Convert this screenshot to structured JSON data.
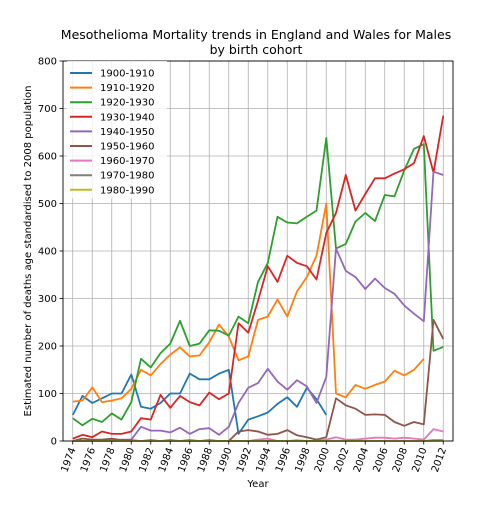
{
  "chart_data": {
    "type": "line",
    "title": "Mesothelioma Mortality trends in England and Wales for Males",
    "subtitle": "by birth cohort",
    "xlabel": "Year",
    "ylabel": "Estimated number of deaths age standardised to 2008 population",
    "xlim": [
      1973,
      2013
    ],
    "ylim": [
      0,
      800
    ],
    "xticks": [
      "1974",
      "1976",
      "1978",
      "1980",
      "1982",
      "1984",
      "1986",
      "1988",
      "1990",
      "1992",
      "1994",
      "1996",
      "1998",
      "2000",
      "2002",
      "2004",
      "2006",
      "2008",
      "2010",
      "2012"
    ],
    "yticks": [
      "0",
      "100",
      "200",
      "300",
      "400",
      "500",
      "600",
      "700",
      "800"
    ],
    "grid": true,
    "legend_position": "top-left",
    "series": [
      {
        "name": "1900-1910",
        "color": "#1f77b4",
        "x": [
          1974,
          1975,
          1976,
          1977,
          1978,
          1979,
          1980,
          1981,
          1982,
          1983,
          1984,
          1985,
          1986,
          1987,
          1988,
          1989,
          1990,
          1991,
          1992,
          1993,
          1994,
          1995,
          1996,
          1997,
          1998,
          1999,
          2000
        ],
        "y": [
          55,
          95,
          80,
          90,
          100,
          100,
          140,
          72,
          68,
          80,
          100,
          100,
          142,
          130,
          130,
          142,
          150,
          15,
          45,
          52,
          60,
          78,
          92,
          72,
          112,
          88,
          55
        ]
      },
      {
        "name": "1910-1920",
        "color": "#ff7f0e",
        "x": [
          1974,
          1975,
          1976,
          1977,
          1978,
          1979,
          1980,
          1981,
          1982,
          1983,
          1984,
          1985,
          1986,
          1987,
          1988,
          1989,
          1990,
          1991,
          1992,
          1993,
          1994,
          1995,
          1996,
          1997,
          1998,
          1999,
          2000,
          2001,
          2002,
          2003,
          2004,
          2005,
          2006,
          2007,
          2008,
          2009,
          2010
        ],
        "y": [
          83,
          85,
          113,
          82,
          85,
          90,
          110,
          150,
          138,
          162,
          182,
          197,
          178,
          180,
          208,
          245,
          220,
          170,
          178,
          255,
          262,
          298,
          262,
          315,
          345,
          390,
          500,
          100,
          92,
          118,
          110,
          118,
          125,
          148,
          138,
          150,
          173
        ]
      },
      {
        "name": "1920-1930",
        "color": "#2ca02c",
        "x": [
          1974,
          1975,
          1976,
          1977,
          1978,
          1979,
          1980,
          1981,
          1982,
          1983,
          1984,
          1985,
          1986,
          1987,
          1988,
          1989,
          1990,
          1991,
          1992,
          1993,
          1994,
          1995,
          1996,
          1997,
          1998,
          1999,
          2000,
          2001,
          2002,
          2003,
          2004,
          2005,
          2006,
          2007,
          2008,
          2009,
          2010,
          2011,
          2012
        ],
        "y": [
          48,
          33,
          47,
          40,
          58,
          45,
          82,
          173,
          155,
          185,
          205,
          253,
          200,
          205,
          233,
          232,
          222,
          262,
          248,
          335,
          375,
          472,
          460,
          458,
          472,
          485,
          638,
          405,
          415,
          462,
          480,
          463,
          518,
          515,
          570,
          615,
          625,
          190,
          198
        ]
      },
      {
        "name": "1930-1940",
        "color": "#d62728",
        "x": [
          1974,
          1975,
          1976,
          1977,
          1978,
          1979,
          1980,
          1981,
          1982,
          1983,
          1984,
          1985,
          1986,
          1987,
          1988,
          1989,
          1990,
          1991,
          1992,
          1993,
          1994,
          1995,
          1996,
          1997,
          1998,
          1999,
          2000,
          2001,
          2002,
          2003,
          2004,
          2005,
          2006,
          2007,
          2008,
          2009,
          2010,
          2011,
          2012
        ],
        "y": [
          5,
          13,
          8,
          20,
          15,
          15,
          20,
          48,
          45,
          97,
          70,
          95,
          82,
          75,
          102,
          88,
          100,
          248,
          228,
          295,
          368,
          335,
          390,
          375,
          368,
          340,
          438,
          480,
          560,
          485,
          520,
          553,
          553,
          563,
          572,
          585,
          642,
          565,
          685
        ]
      },
      {
        "name": "1940-1950",
        "color": "#9467bd",
        "x": [
          1974,
          1975,
          1976,
          1977,
          1978,
          1979,
          1980,
          1981,
          1982,
          1983,
          1984,
          1985,
          1986,
          1987,
          1988,
          1989,
          1990,
          1991,
          1992,
          1993,
          1994,
          1995,
          1996,
          1997,
          1998,
          1999,
          2000,
          2001,
          2002,
          2003,
          2004,
          2005,
          2006,
          2007,
          2008,
          2009,
          2010,
          2011,
          2012
        ],
        "y": [
          0,
          0,
          0,
          0,
          2,
          3,
          3,
          30,
          22,
          22,
          18,
          28,
          15,
          25,
          27,
          13,
          30,
          80,
          112,
          122,
          152,
          125,
          108,
          128,
          115,
          80,
          135,
          405,
          358,
          345,
          320,
          342,
          322,
          310,
          285,
          268,
          252,
          567,
          560
        ]
      },
      {
        "name": "1950-1960",
        "color": "#8c564b",
        "x": [
          1974,
          1975,
          1976,
          1977,
          1978,
          1979,
          1980,
          1981,
          1982,
          1983,
          1984,
          1985,
          1986,
          1987,
          1988,
          1989,
          1990,
          1991,
          1992,
          1993,
          1994,
          1995,
          1996,
          1997,
          1998,
          1999,
          2000,
          2001,
          2002,
          2003,
          2004,
          2005,
          2006,
          2007,
          2008,
          2009,
          2010,
          2011,
          2012
        ],
        "y": [
          0,
          5,
          3,
          3,
          5,
          2,
          2,
          0,
          2,
          0,
          2,
          0,
          2,
          0,
          2,
          0,
          0,
          20,
          23,
          20,
          13,
          15,
          23,
          12,
          8,
          3,
          8,
          90,
          75,
          68,
          55,
          56,
          55,
          40,
          32,
          40,
          35,
          255,
          215
        ]
      },
      {
        "name": "1960-1970",
        "color": "#e377c2",
        "x": [
          1974,
          1975,
          1976,
          1977,
          1978,
          1979,
          1980,
          1981,
          1982,
          1983,
          1984,
          1985,
          1986,
          1987,
          1988,
          1989,
          1990,
          1991,
          1992,
          1993,
          1994,
          1995,
          1996,
          1997,
          1998,
          1999,
          2000,
          2001,
          2002,
          2003,
          2004,
          2005,
          2006,
          2007,
          2008,
          2009,
          2010,
          2011,
          2012
        ],
        "y": [
          0,
          0,
          0,
          0,
          0,
          0,
          0,
          0,
          0,
          0,
          0,
          0,
          0,
          0,
          0,
          0,
          0,
          0,
          0,
          3,
          5,
          0,
          0,
          2,
          0,
          0,
          3,
          8,
          3,
          3,
          5,
          7,
          7,
          5,
          7,
          5,
          3,
          25,
          20
        ]
      },
      {
        "name": "1970-1980",
        "color": "#7f7f7f",
        "x": [
          1974,
          1976,
          1978,
          1980,
          1982,
          1984,
          1986,
          1988,
          1990,
          1992,
          1994,
          1996,
          1998,
          2000,
          2002,
          2004,
          2006,
          2008,
          2010,
          2011,
          2012
        ],
        "y": [
          0,
          0,
          0,
          0,
          0,
          0,
          0,
          0,
          0,
          0,
          0,
          0,
          0,
          0,
          0,
          0,
          0,
          0,
          0,
          2,
          2
        ]
      },
      {
        "name": "1980-1990",
        "color": "#bcbd22",
        "x": [
          1974,
          1976,
          1978,
          1980,
          1982,
          1984,
          1986,
          1988,
          1990,
          1992,
          1994,
          1996,
          1998,
          2000,
          2002,
          2004,
          2006,
          2008,
          2010,
          2012
        ],
        "y": [
          0,
          0,
          0,
          0,
          0,
          0,
          0,
          0,
          0,
          0,
          0,
          0,
          0,
          0,
          0,
          0,
          0,
          0,
          0,
          0
        ]
      }
    ]
  }
}
